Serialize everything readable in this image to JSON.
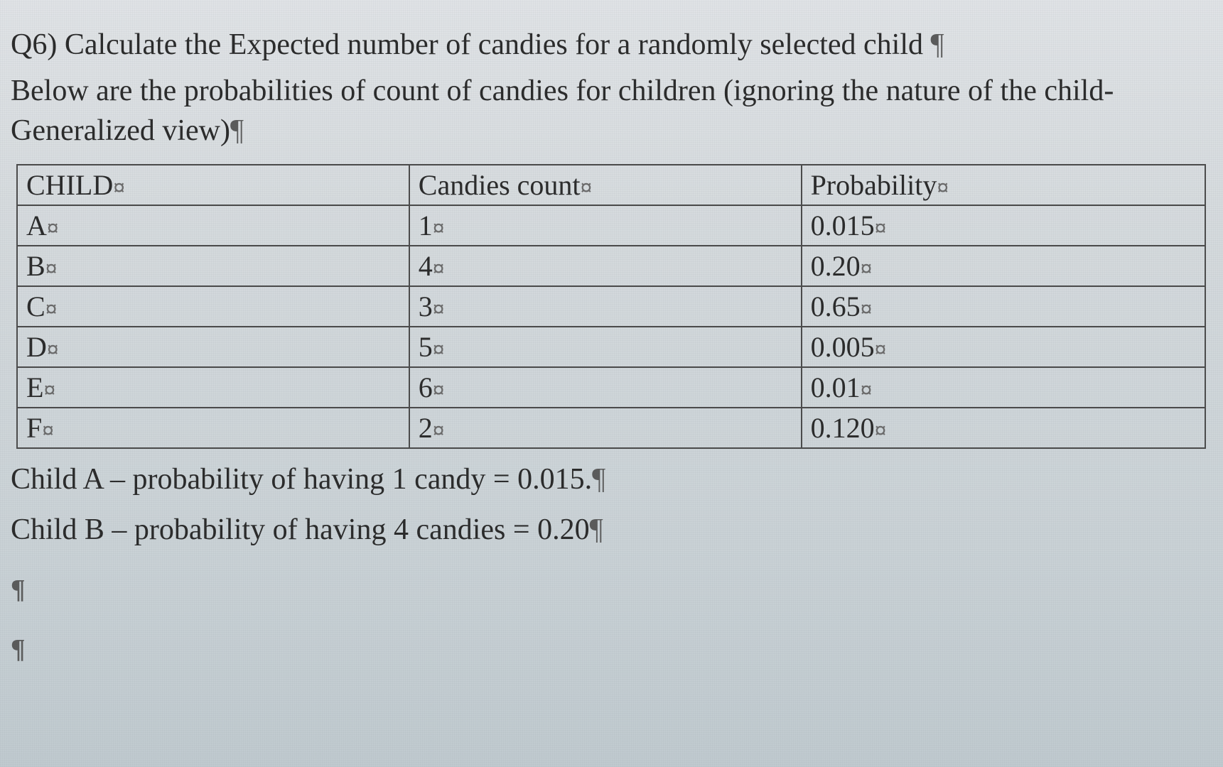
{
  "question": {
    "title_prefix": "Q6) ",
    "title_text": "Calculate the Expected number of candies for a randomly selected child ",
    "description": "Below are the probabilities of count of candies for children (ignoring the nature of the child-Generalized view)"
  },
  "table": {
    "headers": {
      "child": "CHILD",
      "count": "Candies count",
      "probability": "Probability"
    },
    "rows": [
      {
        "child": "A",
        "count": "1",
        "probability": "0.015"
      },
      {
        "child": "B",
        "count": "4",
        "probability": "0.20"
      },
      {
        "child": "C",
        "count": "3",
        "probability": "0.65"
      },
      {
        "child": "D",
        "count": "5",
        "probability": "0.005"
      },
      {
        "child": "E",
        "count": "6",
        "probability": "0.01"
      },
      {
        "child": "F",
        "count": "2",
        "probability": "0.120"
      }
    ],
    "border_color": "#4a4a4a",
    "header_fontsize": 40,
    "cell_fontsize": 40
  },
  "footer_lines": [
    "Child A – probability of having 1 candy = 0.015.",
    "Child B – probability of having 4 candies = 0.20"
  ],
  "formatting_marks": {
    "pilcrow": "¶",
    "cell_end": "¤"
  },
  "styling": {
    "background_gradient_start": "#e0e3e6",
    "background_gradient_end": "#c0cacf",
    "text_color": "#2a2a2a",
    "font_family": "Times New Roman",
    "title_fontsize": 42,
    "body_fontsize": 42
  }
}
